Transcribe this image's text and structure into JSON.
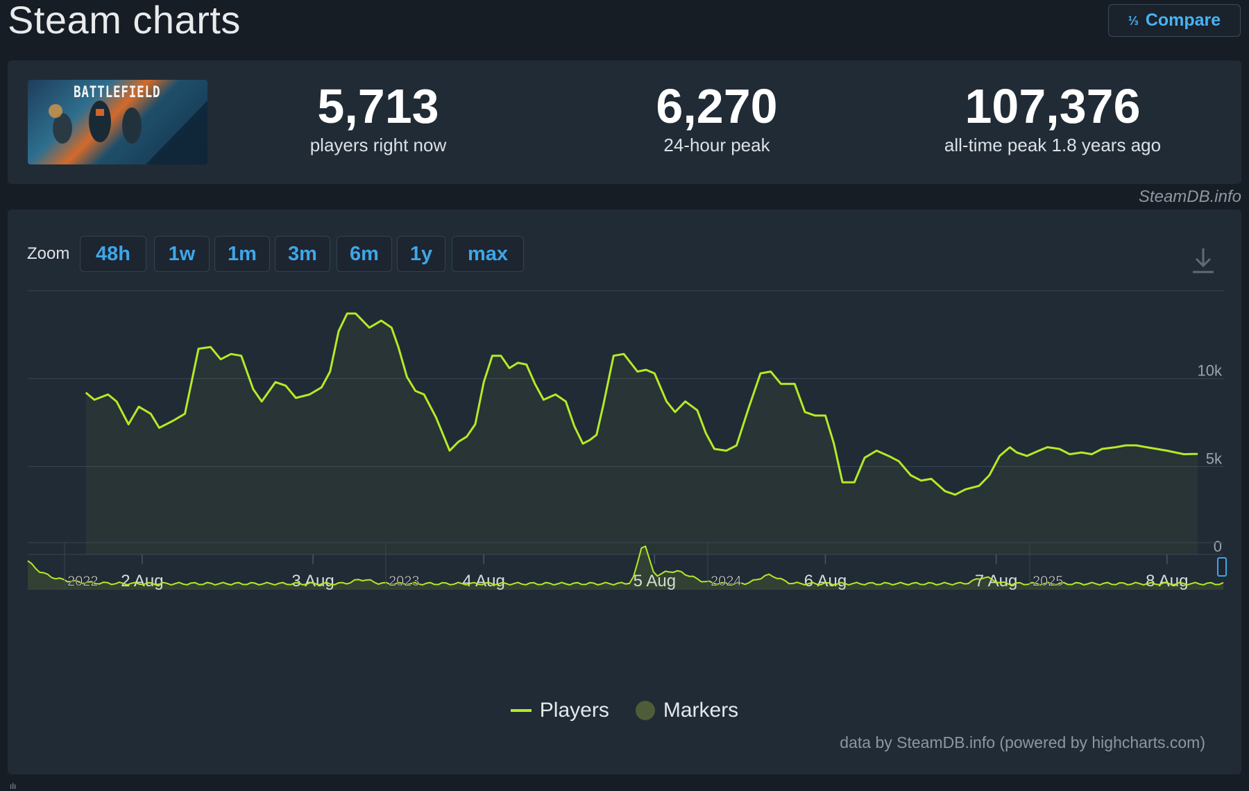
{
  "page": {
    "title": "Steam charts",
    "compare_label": "Compare",
    "compare_icon": "compare-icon",
    "watermark": "SteamDB.info",
    "footer_glyph": "ılı"
  },
  "game": {
    "art_text": "BATTLEFIELD"
  },
  "stats": [
    {
      "value": "5,713",
      "label": "players right now"
    },
    {
      "value": "6,270",
      "label": "24-hour peak"
    },
    {
      "value": "107,376",
      "label": "all-time peak 1.8 years ago"
    }
  ],
  "zoom": {
    "label": "Zoom",
    "options": [
      "48h",
      "1w",
      "1m",
      "3m",
      "6m",
      "1y",
      "max"
    ],
    "active": "1w"
  },
  "legend": {
    "players": "Players",
    "markers": "Markers"
  },
  "credits": "data by SteamDB.info (powered by highcharts.com)",
  "colors": {
    "accent": "#48b3f2",
    "line": "#b4ea27",
    "background": "#171d25",
    "panel": "#212b36"
  },
  "chart_data": {
    "type": "line",
    "title": "",
    "xlabel": "",
    "ylabel": "",
    "ylim": [
      0,
      15000
    ],
    "yticks": [
      "0",
      "5k",
      "10k"
    ],
    "xticks": [
      "2 Aug",
      "3 Aug",
      "4 Aug",
      "5 Aug",
      "6 Aug",
      "7 Aug",
      "8 Aug"
    ],
    "grid": true,
    "legend_position": "bottom-center",
    "series": [
      {
        "name": "Players",
        "x_days": [
          0.67,
          0.72,
          0.8,
          0.85,
          0.92,
          0.98,
          1.05,
          1.1,
          1.18,
          1.25,
          1.33,
          1.4,
          1.46,
          1.52,
          1.58,
          1.65,
          1.7,
          1.78,
          1.84,
          1.9,
          1.98,
          2.05,
          2.1,
          2.15,
          2.2,
          2.25,
          2.33,
          2.4,
          2.46,
          2.5,
          2.55,
          2.6,
          2.65,
          2.72,
          2.8,
          2.85,
          2.9,
          2.95,
          3.0,
          3.05,
          3.1,
          3.15,
          3.2,
          3.25,
          3.3,
          3.35,
          3.42,
          3.48,
          3.53,
          3.58,
          3.62,
          3.66,
          3.7,
          3.76,
          3.82,
          3.9,
          3.95,
          4.0,
          4.07,
          4.12,
          4.18,
          4.25,
          4.3,
          4.35,
          4.42,
          4.48,
          4.55,
          4.62,
          4.68,
          4.74,
          4.82,
          4.88,
          4.94,
          5.0,
          5.05,
          5.1,
          5.17,
          5.23,
          5.3,
          5.37,
          5.43,
          5.5,
          5.56,
          5.62,
          5.7,
          5.76,
          5.82,
          5.9,
          5.96,
          6.02,
          6.08,
          6.12,
          6.18,
          6.25,
          6.3,
          6.37,
          6.43,
          6.5,
          6.56,
          6.62,
          6.7,
          6.76,
          6.82,
          6.88,
          6.94,
          7.0,
          7.05,
          7.1,
          7.15,
          7.18
        ],
        "values": [
          9200,
          8800,
          9100,
          8700,
          7400,
          8400,
          8000,
          7200,
          7600,
          8000,
          11700,
          11800,
          11100,
          11400,
          11300,
          9400,
          8700,
          9800,
          9600,
          8900,
          9100,
          9500,
          10400,
          12700,
          13700,
          13700,
          12900,
          13300,
          12900,
          11800,
          10100,
          9300,
          9100,
          7800,
          5900,
          6400,
          6700,
          7400,
          9800,
          11300,
          11300,
          10600,
          10900,
          10800,
          9700,
          8800,
          9100,
          8700,
          7300,
          6300,
          6500,
          6800,
          8500,
          11300,
          11400,
          10400,
          10500,
          10300,
          8700,
          8100,
          8700,
          8200,
          6900,
          6000,
          5900,
          6200,
          8300,
          10300,
          10400,
          9700,
          9700,
          8100,
          7900,
          7900,
          6300,
          4100,
          4100,
          5500,
          5900,
          5600,
          5300,
          4500,
          4200,
          4300,
          3600,
          3400,
          3700,
          3900,
          4500,
          5600,
          6100,
          5800,
          5600,
          5900,
          6100,
          6000,
          5700,
          5800,
          5700,
          6000,
          6100,
          6200,
          6200,
          6100,
          6000,
          5900,
          5800,
          5700,
          5713,
          5713
        ]
      }
    ],
    "navigator": {
      "labels": [
        "2022",
        "2023",
        "2024",
        "2025"
      ]
    }
  }
}
